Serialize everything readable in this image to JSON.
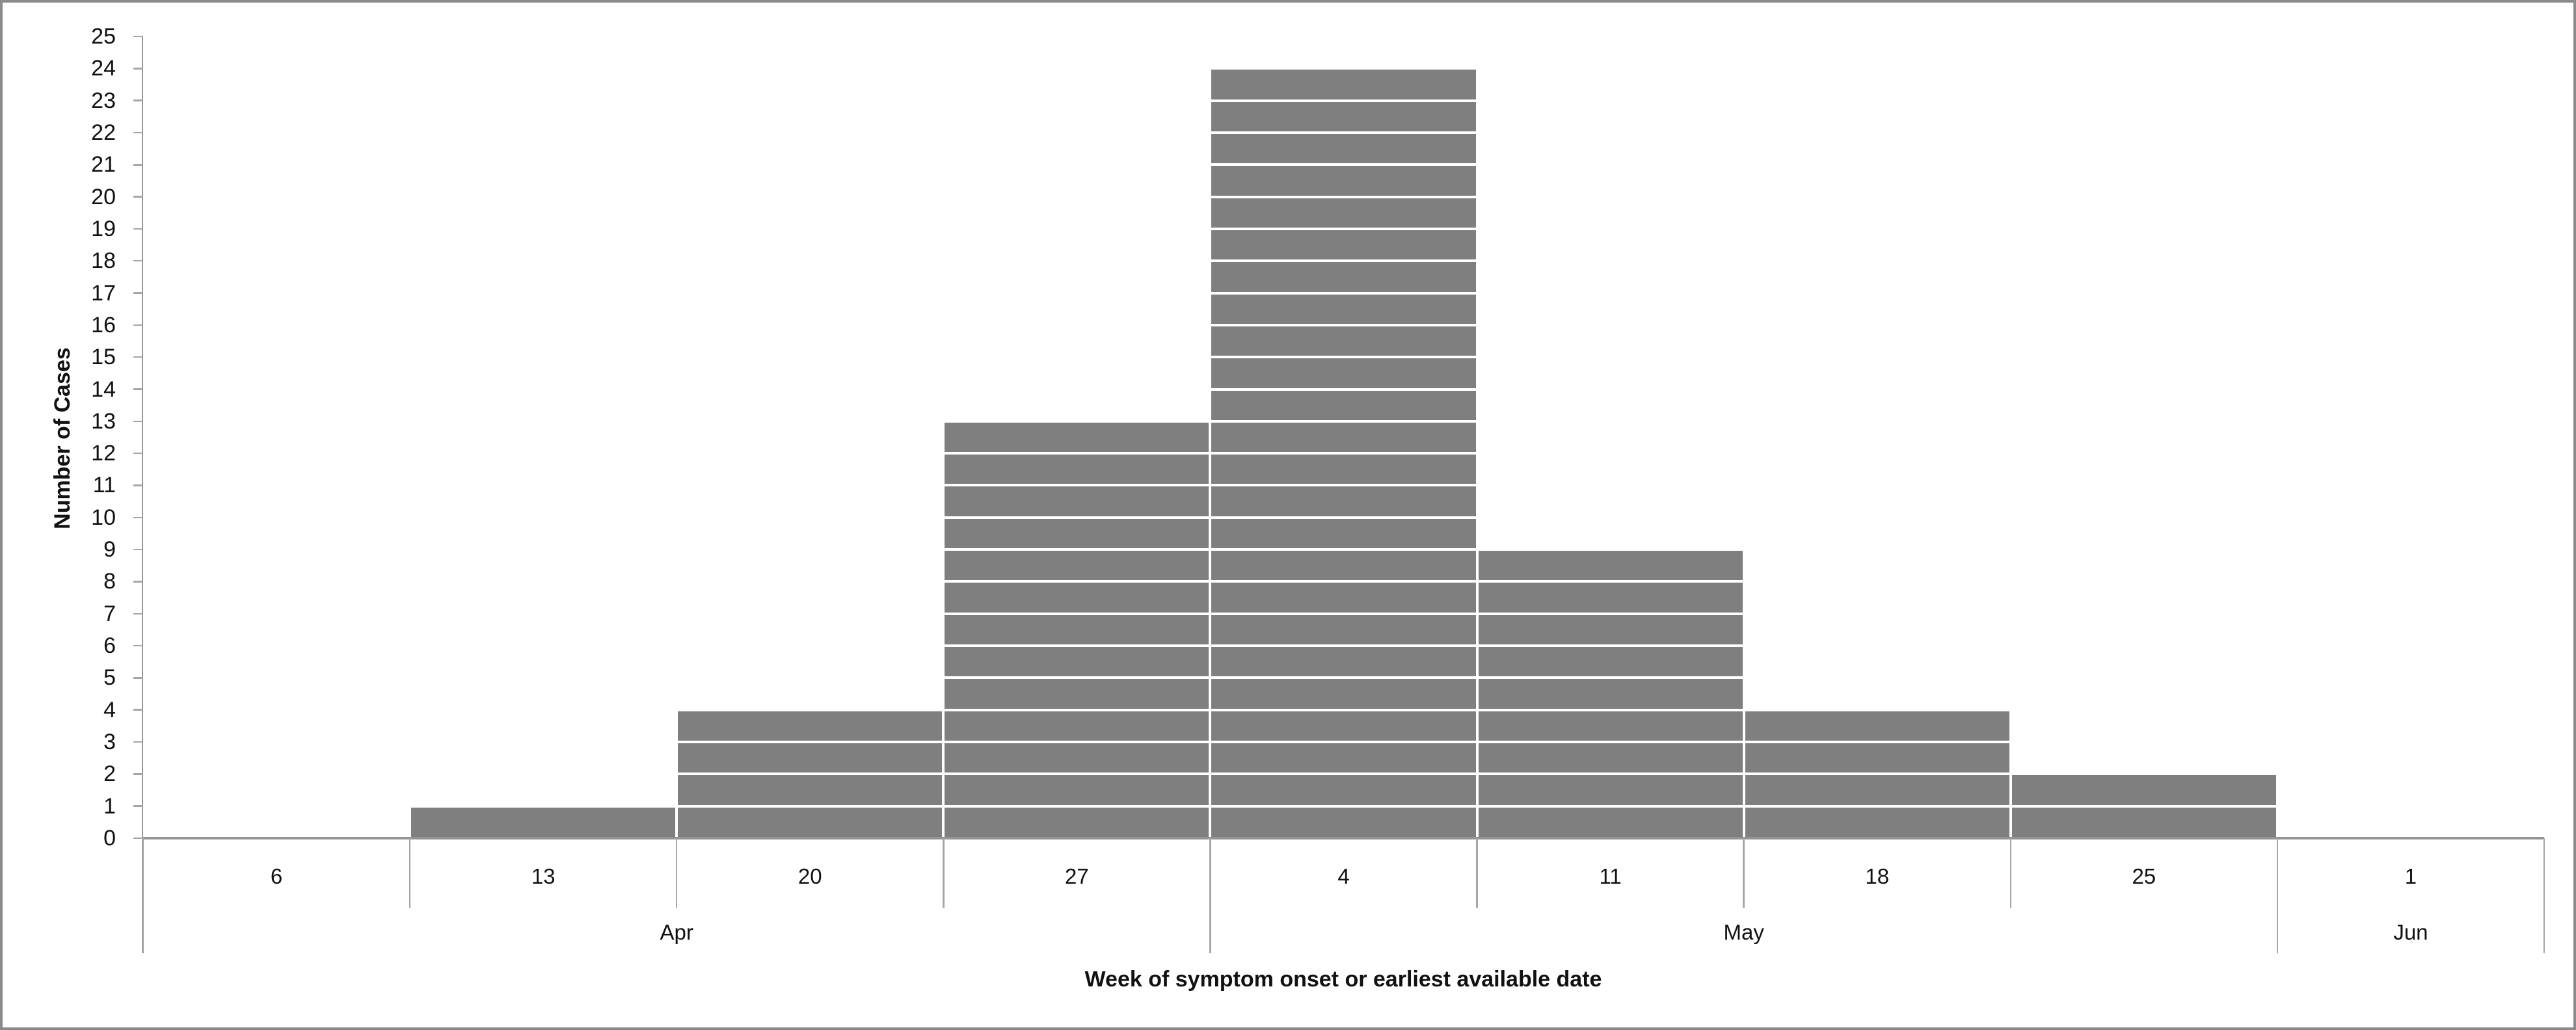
{
  "frame": {
    "border_color": "#8a8a8a",
    "background": "#ffffff"
  },
  "chart_data": {
    "type": "bar",
    "variant": "epidemic-curve-unit-stacked",
    "title": "",
    "xlabel": "Week of symptom onset or earliest available date",
    "ylabel": "Number of Cases",
    "categories": [
      "6",
      "13",
      "20",
      "27",
      "4",
      "11",
      "18",
      "25",
      "1"
    ],
    "values": [
      0,
      1,
      4,
      13,
      24,
      9,
      4,
      2,
      0
    ],
    "month_groups": [
      {
        "label": "Apr",
        "weeks": 4
      },
      {
        "label": "May",
        "weeks": 4
      },
      {
        "label": "Jun",
        "weeks": 1
      }
    ],
    "ylim": [
      0,
      25
    ],
    "yticks": [
      0,
      1,
      2,
      3,
      4,
      5,
      6,
      7,
      8,
      9,
      10,
      11,
      12,
      13,
      14,
      15,
      16,
      17,
      18,
      19,
      20,
      21,
      22,
      23,
      24,
      25
    ],
    "grid": false,
    "legend_position": null,
    "bar_color": "#7f7f7f",
    "bar_separator_color": "#ffffff",
    "axis_line_color": "#949494",
    "tick_color": "#a6a6a6",
    "label_color": "#111111"
  }
}
